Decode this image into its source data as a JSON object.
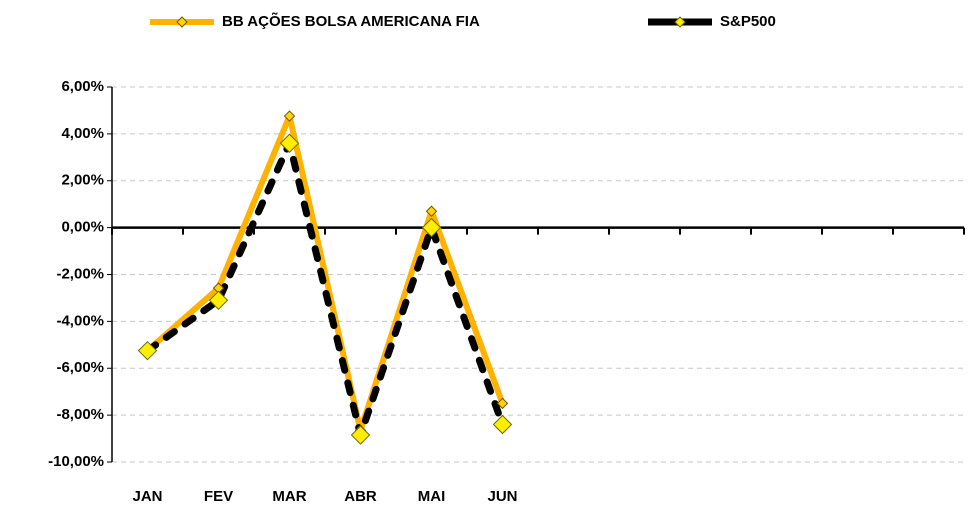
{
  "chart_data": {
    "type": "line",
    "categories": [
      "JAN",
      "FEV",
      "MAR",
      "ABR",
      "MAI",
      "JUN",
      null,
      null,
      null,
      null,
      null,
      null
    ],
    "series": [
      {
        "name": "BB AÇÕES BOLSA AMERICANA FIA",
        "color": "#ffb300",
        "values": [
          -5.25,
          -2.58,
          4.76,
          -8.65,
          0.7,
          -7.5,
          null,
          null,
          null,
          null,
          null,
          null
        ]
      },
      {
        "name": "S&P500",
        "color": "#000000",
        "values": [
          -5.25,
          -3.1,
          3.6,
          -8.85,
          0.0,
          -8.4,
          null,
          null,
          null,
          null,
          null,
          null
        ]
      }
    ],
    "ylim": [
      -10,
      6
    ],
    "yticks": [
      {
        "value": -10,
        "label": "-10,00%"
      },
      {
        "value": -8,
        "label": "-8,00%"
      },
      {
        "value": -6,
        "label": "-6,00%"
      },
      {
        "value": -4,
        "label": "-4,00%"
      },
      {
        "value": -2,
        "label": "-2,00%"
      },
      {
        "value": 0,
        "label": "0,00%"
      },
      {
        "value": 2,
        "label": "2,00%"
      },
      {
        "value": 4,
        "label": "4,00%"
      },
      {
        "value": 6,
        "label": "6,00%"
      }
    ],
    "grid": true,
    "legend": "top"
  }
}
